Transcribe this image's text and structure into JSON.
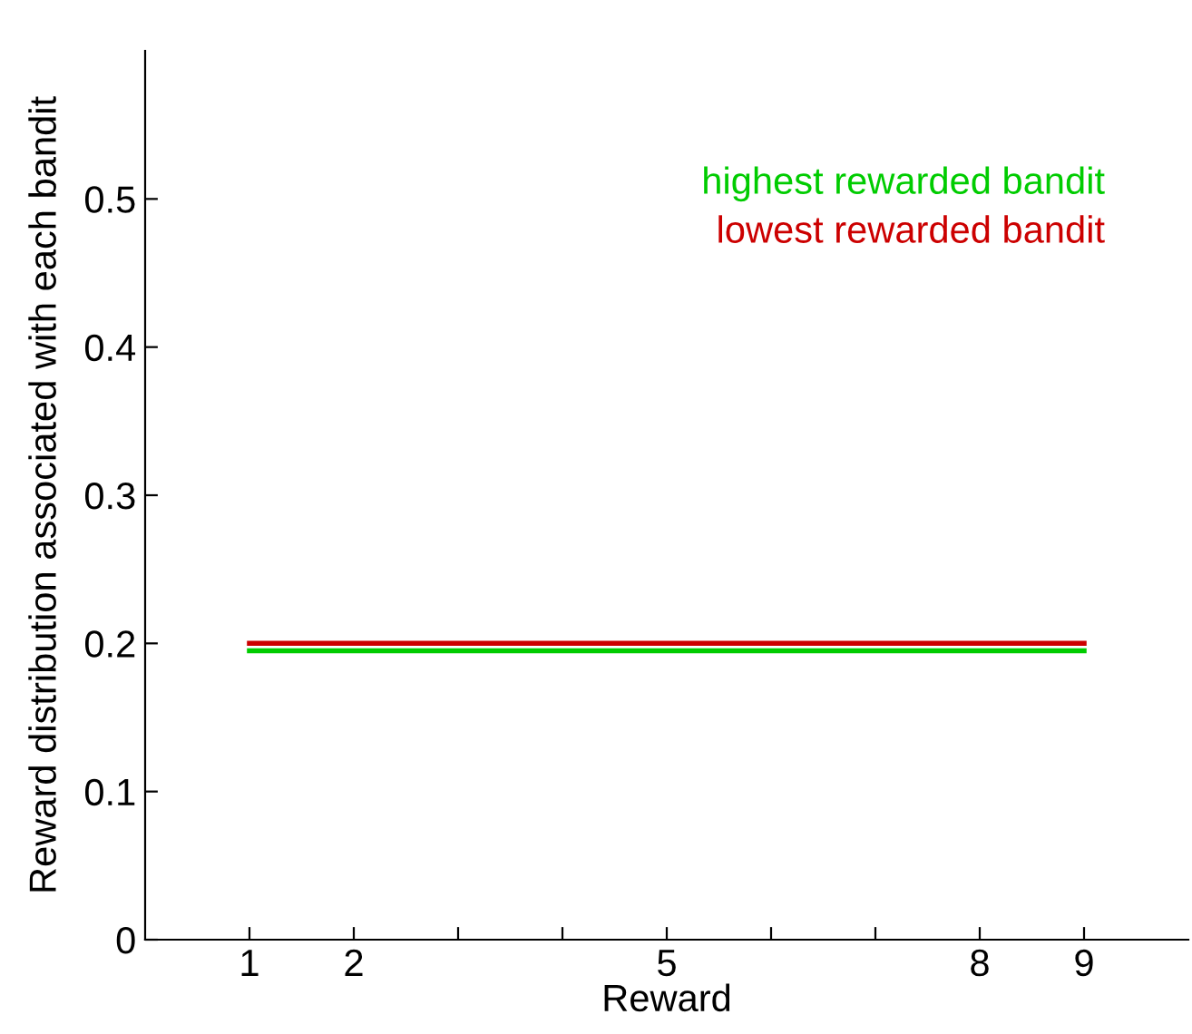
{
  "chart_data": {
    "type": "line",
    "xlabel": "Reward",
    "ylabel": "Reward distribution associated with each bandit",
    "x": [
      1,
      9
    ],
    "series": [
      {
        "name": "highest rewarded bandit",
        "color": "#00cc00",
        "values": [
          0.195,
          0.195
        ]
      },
      {
        "name": "lowest rewarded bandit",
        "color": "#cc0000",
        "values": [
          0.2,
          0.2
        ]
      }
    ],
    "xlim": [
      0,
      10
    ],
    "xticks": [
      1,
      2,
      {
        "value": 3,
        "label": null
      },
      {
        "value": 4,
        "label": null
      },
      5,
      {
        "value": 6,
        "label": null
      },
      {
        "value": 7,
        "label": null
      },
      8,
      9
    ],
    "ylim": [
      0,
      0.6
    ],
    "yticks": [
      0,
      0.1,
      0.2,
      0.3,
      0.4,
      0.5
    ],
    "grid": false,
    "legend": "top right",
    "marker": "none",
    "line_style": "solid"
  }
}
